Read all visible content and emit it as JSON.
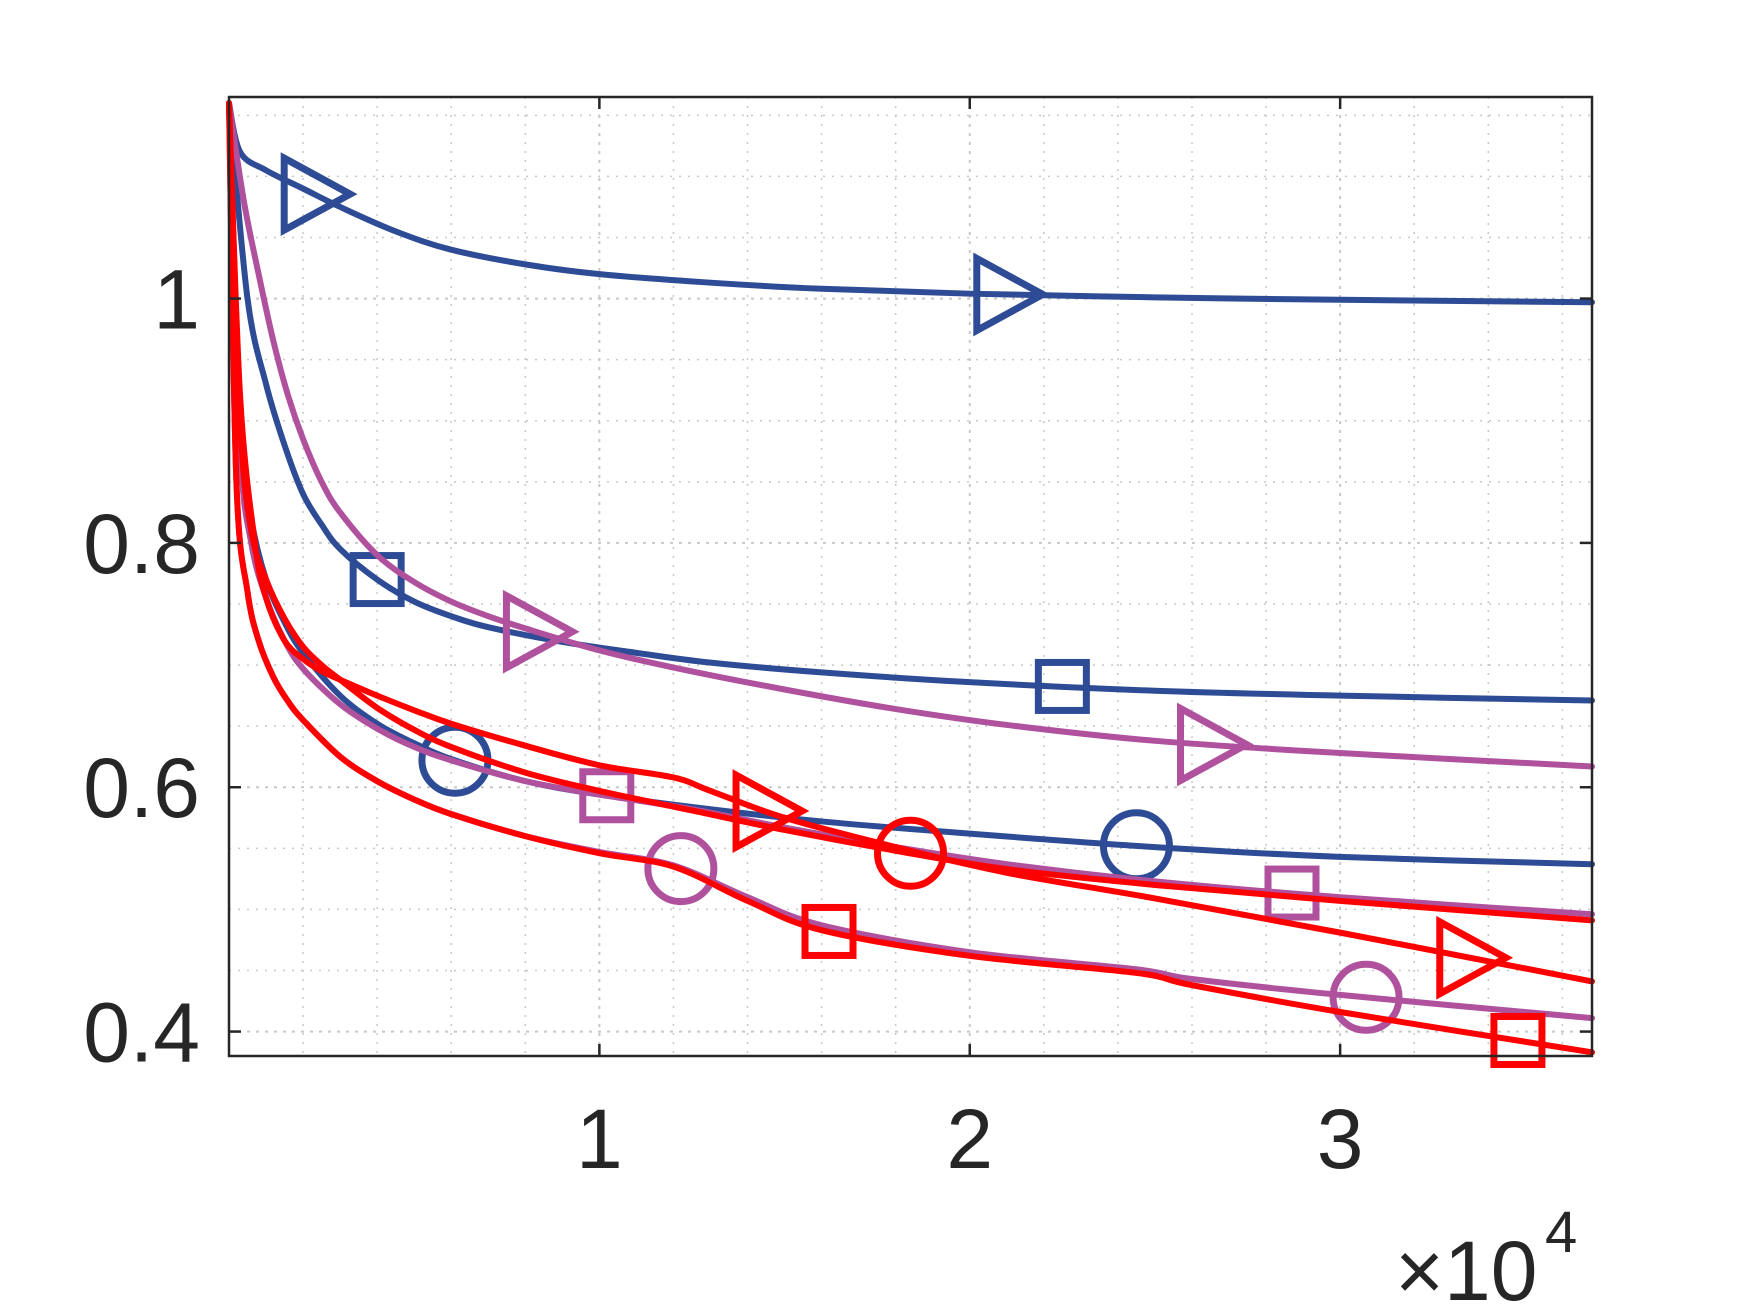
{
  "chart_data": {
    "type": "line",
    "title": "",
    "xlabel": "",
    "ylabel": "",
    "xlim": [
      0,
      36800
    ],
    "ylim": [
      0.38,
      1.165
    ],
    "grid": "dotted, major and minor",
    "x_multiplier_label": {
      "base": "×10",
      "exponent": "4"
    },
    "x_ticks": [
      {
        "value": 10000,
        "label": "1"
      },
      {
        "value": 20000,
        "label": "2"
      },
      {
        "value": 30000,
        "label": "3"
      }
    ],
    "y_ticks": [
      {
        "value": 0.4,
        "label": "0.4"
      },
      {
        "value": 0.6,
        "label": "0.6"
      },
      {
        "value": 0.8,
        "label": "0.8"
      },
      {
        "value": 1.0,
        "label": "1"
      }
    ],
    "colors": {
      "blue": "#2e4b95",
      "purple": "#b0519e",
      "red": "#ff0000",
      "axis": "#262626",
      "grid": "#c8c8c8"
    },
    "series": [
      {
        "color": "#2e4b95",
        "marker": "triangle-right",
        "x": [
          0,
          300,
          1000,
          2000,
          3000,
          4500,
          6000,
          8000,
          10000,
          13000,
          16000,
          20000,
          25000,
          30000,
          36800
        ],
        "y": [
          1.16,
          1.12,
          1.105,
          1.09,
          1.075,
          1.055,
          1.04,
          1.028,
          1.02,
          1.013,
          1.008,
          1.004,
          1.001,
          0.999,
          0.997
        ],
        "markers_x": [
          2300,
          21000
        ]
      },
      {
        "color": "#2e4b95",
        "marker": "square",
        "x": [
          0,
          500,
          1000,
          1500,
          2000,
          2500,
          3000,
          4000,
          5000,
          6000,
          7000,
          9000,
          11000,
          13000,
          16000,
          20000,
          25000,
          30000,
          36800
        ],
        "y": [
          1.16,
          1.0,
          0.93,
          0.88,
          0.84,
          0.815,
          0.795,
          0.77,
          0.752,
          0.74,
          0.731,
          0.719,
          0.71,
          0.702,
          0.694,
          0.686,
          0.679,
          0.675,
          0.671
        ],
        "markers_x": [
          4000,
          22500
        ]
      },
      {
        "color": "#2e4b95",
        "marker": "circle",
        "x": [
          0,
          300,
          600,
          1000,
          1500,
          2000,
          3000,
          4000,
          5000,
          6000,
          8000,
          10000,
          13000,
          16000,
          20000,
          25000,
          30000,
          36800
        ],
        "y": [
          1.16,
          0.9,
          0.82,
          0.77,
          0.735,
          0.71,
          0.675,
          0.652,
          0.636,
          0.623,
          0.605,
          0.594,
          0.582,
          0.572,
          0.562,
          0.551,
          0.543,
          0.537
        ],
        "markers_x": [
          6100,
          24500
        ]
      },
      {
        "color": "#b0519e",
        "marker": "triangle-right",
        "x": [
          0,
          400,
          800,
          1200,
          1600,
          2000,
          2500,
          3000,
          4000,
          5000,
          6000,
          7000,
          8000,
          10000,
          12000,
          15000,
          18000,
          21000,
          25000,
          30000,
          36800
        ],
        "y": [
          1.16,
          1.08,
          1.02,
          0.965,
          0.92,
          0.885,
          0.85,
          0.825,
          0.79,
          0.768,
          0.752,
          0.74,
          0.73,
          0.712,
          0.698,
          0.68,
          0.664,
          0.651,
          0.638,
          0.628,
          0.617
        ],
        "markers_x": [
          8300,
          26500
        ]
      },
      {
        "color": "#b0519e",
        "marker": "square",
        "x": [
          0,
          300,
          600,
          1000,
          1500,
          2000,
          3000,
          4000,
          5000,
          6000,
          8000,
          10000,
          12500,
          15000,
          18000,
          21000,
          25000,
          30000,
          36800
        ],
        "y": [
          1.16,
          0.88,
          0.8,
          0.755,
          0.72,
          0.697,
          0.668,
          0.648,
          0.633,
          0.622,
          0.605,
          0.594,
          0.582,
          0.567,
          0.551,
          0.537,
          0.523,
          0.51,
          0.496
        ],
        "markers_x": [
          10200,
          28700
        ]
      },
      {
        "color": "#b0519e",
        "marker": "circle",
        "x": [
          0,
          200,
          500,
          800,
          1200,
          1600,
          2000,
          3000,
          4000,
          5000,
          6000,
          8000,
          10000,
          12000,
          14000,
          16000,
          20000,
          24500,
          26000,
          30000,
          36800
        ],
        "y": [
          1.16,
          0.85,
          0.76,
          0.72,
          0.69,
          0.67,
          0.655,
          0.625,
          0.605,
          0.59,
          0.578,
          0.56,
          0.547,
          0.536,
          0.51,
          0.487,
          0.465,
          0.451,
          0.443,
          0.43,
          0.411
        ],
        "markers_x": [
          12200,
          30700
        ]
      },
      {
        "color": "#ff0000",
        "marker": "triangle-right",
        "x": [
          0,
          300,
          700,
          1000,
          1500,
          2000,
          2500,
          3000,
          4000,
          5000,
          6000,
          8000,
          10000,
          12000,
          13000,
          15000,
          18000,
          21000,
          25000,
          30000,
          36800
        ],
        "y": [
          1.16,
          0.92,
          0.8,
          0.755,
          0.72,
          0.705,
          0.695,
          0.688,
          0.675,
          0.663,
          0.652,
          0.634,
          0.618,
          0.608,
          0.597,
          0.575,
          0.551,
          0.53,
          0.509,
          0.481,
          0.441
        ],
        "markers_x": [
          14500,
          33500
        ]
      },
      {
        "color": "#ff0000",
        "marker": "circle",
        "x": [
          0,
          300,
          600,
          1000,
          1500,
          2000,
          2500,
          3000,
          4000,
          5000,
          6000,
          8000,
          10000,
          12500,
          15000,
          18000,
          21000,
          25000,
          30000,
          36800
        ],
        "y": [
          1.16,
          0.9,
          0.81,
          0.77,
          0.738,
          0.715,
          0.7,
          0.688,
          0.665,
          0.647,
          0.633,
          0.612,
          0.597,
          0.581,
          0.565,
          0.548,
          0.533,
          0.52,
          0.507,
          0.491
        ],
        "markers_x": [
          18400
        ]
      },
      {
        "color": "#ff0000",
        "marker": "square",
        "x": [
          0,
          200,
          500,
          800,
          1200,
          1600,
          2000,
          3000,
          4000,
          5000,
          6000,
          8000,
          10000,
          12000,
          14000,
          16000,
          20000,
          24500,
          26000,
          30000,
          36800
        ],
        "y": [
          1.16,
          0.85,
          0.76,
          0.72,
          0.69,
          0.67,
          0.655,
          0.625,
          0.605,
          0.59,
          0.578,
          0.56,
          0.546,
          0.535,
          0.507,
          0.483,
          0.462,
          0.448,
          0.438,
          0.416,
          0.383
        ],
        "markers_x": [
          16200,
          34800
        ]
      }
    ]
  }
}
